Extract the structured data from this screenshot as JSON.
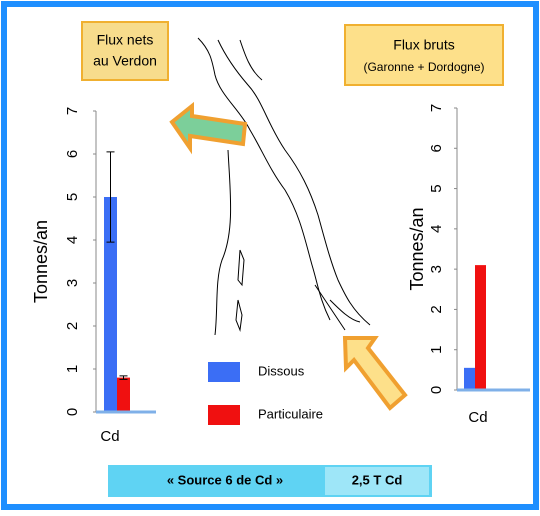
{
  "chart_data": [
    {
      "type": "bar",
      "y_label": "Tonnes/an",
      "categories": [
        "Cd"
      ],
      "ylim": [
        0,
        7
      ],
      "yticks": [
        0,
        1,
        2,
        3,
        4,
        5,
        6,
        7
      ],
      "series": [
        {
          "name": "Dissous",
          "color": "#3b6ef5",
          "values": [
            5
          ],
          "errors": [
            1.05
          ]
        },
        {
          "name": "Particulaire",
          "color": "#f01010",
          "values": [
            0.8
          ],
          "errors": [
            0.04
          ]
        }
      ]
    },
    {
      "type": "bar",
      "y_label": "Tonnes/an",
      "categories": [
        "Cd"
      ],
      "ylim": [
        0,
        7
      ],
      "yticks": [
        0,
        1,
        2,
        3,
        4,
        5,
        6,
        7
      ],
      "series": [
        {
          "color": "#3b6ef5",
          "values": [
            0.55
          ]
        },
        {
          "color": "#f01010",
          "values": [
            3.1
          ]
        }
      ]
    }
  ],
  "boxes": {
    "left": [
      "Flux nets",
      "au Verdon"
    ],
    "right": [
      "Flux bruts",
      "(Garonne + Dordogne)"
    ]
  },
  "banner": {
    "source": "« Source 6 de Cd »",
    "amount": "2,5 T Cd"
  }
}
